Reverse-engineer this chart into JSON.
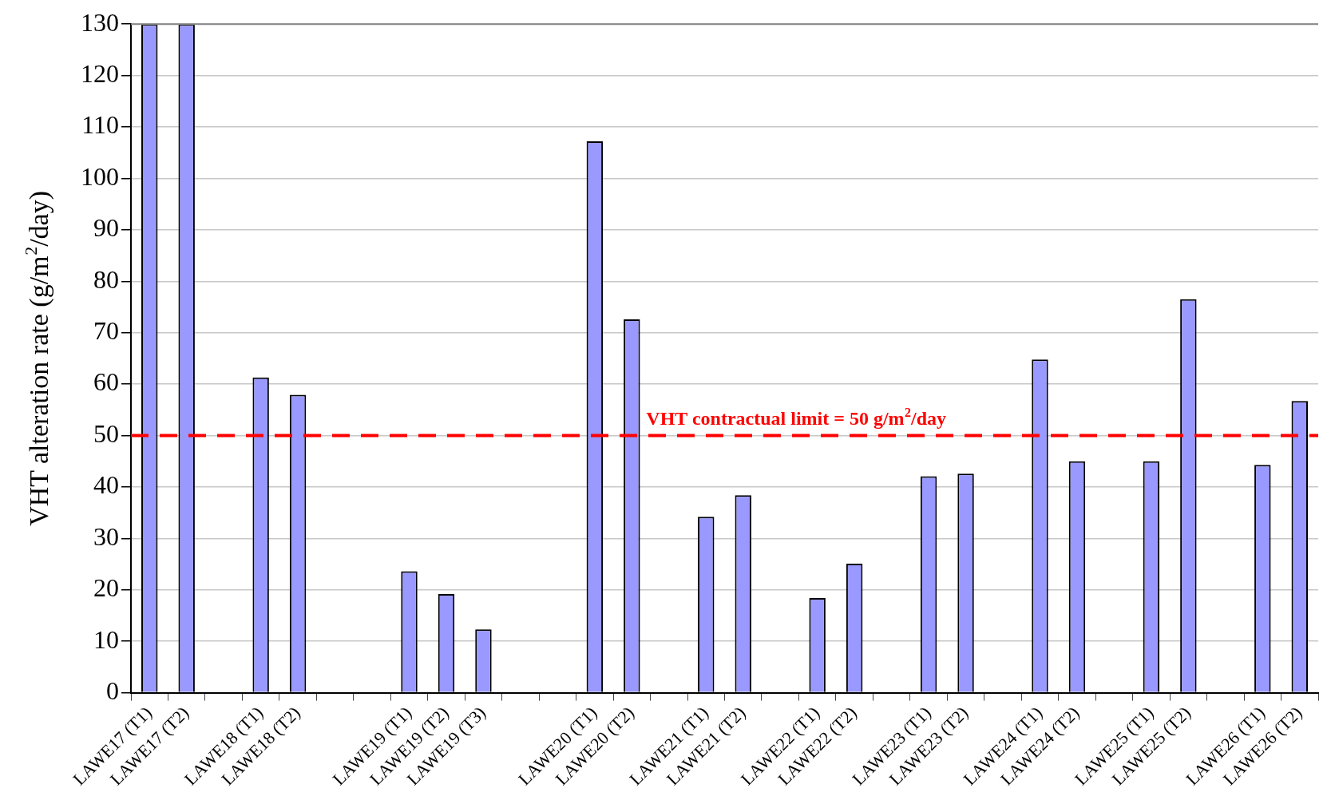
{
  "chart_data": {
    "type": "bar",
    "ylabel": "VHT alteration rate (g/m$^{2}$/day)",
    "categories": [
      "LAWE17 (T1)",
      "LAWE17 (T2)",
      null,
      "LAWE18 (T1)",
      "LAWE18 (T2)",
      null,
      null,
      "LAWE19 (T1)",
      "LAWE19 (T2)",
      "LAWE19 (T3)",
      null,
      null,
      "LAWE20 (T1)",
      "LAWE20 (T2)",
      null,
      "LAWE21 (T1)",
      "LAWE21 (T2)",
      null,
      "LAWE22 (T1)",
      "LAWE22 (T2)",
      null,
      "LAWE23 (T1)",
      "LAWE23 (T2)",
      null,
      "LAWE24 (T1)",
      "LAWE24 (T2)",
      null,
      "LAWE25 (T1)",
      "LAWE25 (T2)",
      null,
      "LAWE26 (T1)",
      "LAWE26 (T2)"
    ],
    "series": [
      {
        "color": "#9999ff",
        "values": [
          130,
          130,
          null,
          61.3,
          57.9,
          null,
          null,
          23.6,
          19.2,
          12.3,
          null,
          null,
          107.2,
          72.6,
          null,
          34.2,
          38.4,
          null,
          18.4,
          25.1,
          null,
          42.1,
          42.6,
          null,
          64.8,
          45.0,
          null,
          45.0,
          76.5,
          null,
          44.3,
          56.7
        ]
      }
    ],
    "ylim": [
      0,
      130
    ],
    "yticks": [
      0,
      10,
      20,
      30,
      40,
      50,
      60,
      70,
      80,
      90,
      100,
      110,
      120,
      130
    ],
    "grid": "y",
    "legend": false,
    "ref_lines": [
      {
        "axis": "y",
        "value": 50,
        "label": "VHT contractual limit = 50 g/m$^{2}$/day",
        "color": "#ff0000",
        "line_style": "dashed"
      }
    ]
  }
}
